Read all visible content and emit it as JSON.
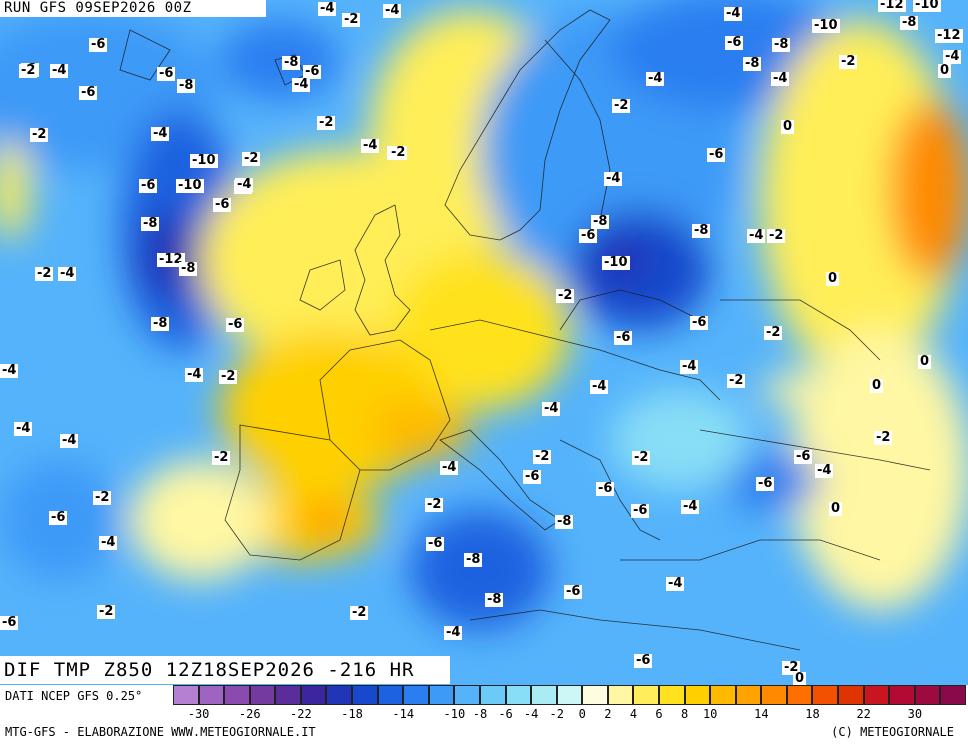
{
  "header": {
    "run_label": "RUN GFS 09SEP2026 00Z",
    "field_label": "DIF TMP Z850 12Z18SEP2026 -216 HR"
  },
  "legend": {
    "source": "DATI NCEP GFS 0.25°",
    "credit_left": "MTG-GFS - ELABORAZIONE WWW.METEOGIORNALE.IT",
    "credit_right": "(C) METEOGIORNALE",
    "colors": [
      "#b57fd2",
      "#9f64c2",
      "#8a4ab0",
      "#743a9e",
      "#5a2d9a",
      "#3b26a0",
      "#2235b6",
      "#1848cc",
      "#1d62e0",
      "#2a7ef0",
      "#3e9af7",
      "#55b3fb",
      "#6ccaf8",
      "#88def6",
      "#a9ecf4",
      "#cdf6f7",
      "#fffde0",
      "#fff7a3",
      "#ffee59",
      "#ffe21d",
      "#ffd000",
      "#ffba00",
      "#ffa300",
      "#ff8a00",
      "#ff6f00",
      "#f25100",
      "#e03400",
      "#c9151f",
      "#b30a33",
      "#9c0a40",
      "#880a4a"
    ],
    "tick_labels": [
      "-30",
      "-26",
      "-22",
      "-18",
      "-14",
      "-10",
      "-8",
      "-6",
      "-4",
      "-2",
      "0",
      "2",
      "4",
      "6",
      "8",
      "10",
      "14",
      "18",
      "22",
      "30"
    ]
  },
  "contour_labels": [
    "-4",
    "-2",
    "-4",
    "-4",
    "-12",
    "-10",
    "-6",
    "-2",
    "-2",
    "-6",
    "-10",
    "-8",
    "-12",
    "-4",
    "-2",
    "-4",
    "-6",
    "-8",
    "-6",
    "-4",
    "-8",
    "-8",
    "-2",
    "0",
    "-4",
    "-2",
    "-6",
    "-8",
    "-2",
    "-6",
    "-4",
    "-2",
    "0",
    "-4",
    "-2",
    "-2",
    "-4",
    "-2",
    "-10",
    "-2",
    "-6",
    "-6",
    "-10",
    "-4",
    "-4",
    "-6",
    "-8",
    "-8",
    "-6",
    "-4",
    "-2",
    "-8",
    "-12",
    "-8",
    "-10",
    "-2",
    "-2",
    "-4",
    "0",
    "-6",
    "-8",
    "-6",
    "-2",
    "-4",
    "-2",
    "-4",
    "-2",
    "0",
    "0",
    "-4",
    "-4",
    "-4",
    "-4",
    "-4",
    "-2",
    "-2",
    "-2",
    "-6",
    "-4",
    "-2",
    "-6",
    "-6",
    "-6",
    "-4",
    "-6",
    "0",
    "-4",
    "-6",
    "-8",
    "-2",
    "-8",
    "-8",
    "-4",
    "-2",
    "-4",
    "-6",
    "-6",
    "-4",
    "-2",
    "-6",
    "-2",
    "-6",
    "0"
  ]
}
